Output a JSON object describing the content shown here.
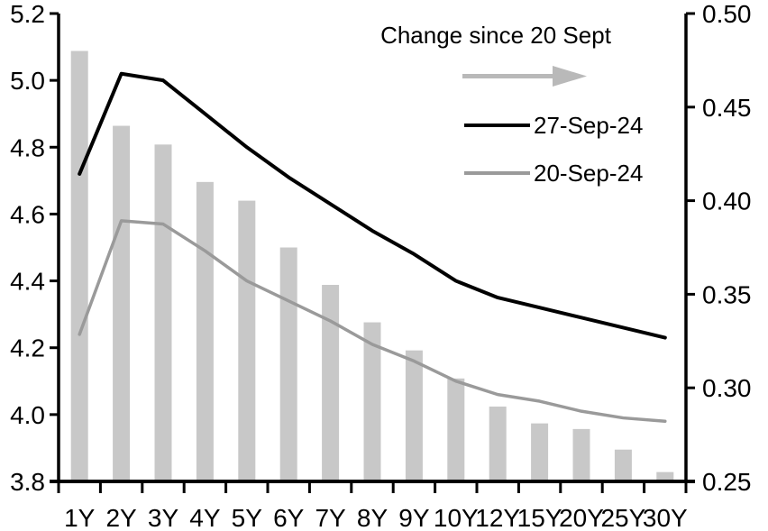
{
  "chart_data": {
    "type": "bar+line combo",
    "categories": [
      "1Y",
      "2Y",
      "3Y",
      "4Y",
      "5Y",
      "6Y",
      "7Y",
      "8Y",
      "9Y",
      "10Y",
      "12Y",
      "15Y",
      "20Y",
      "25Y",
      "30Y"
    ],
    "series": [
      {
        "name": "Change since 20 Sept",
        "type": "bar",
        "axis": "right",
        "color": "#c8c8c8",
        "values": [
          0.48,
          0.44,
          0.43,
          0.41,
          0.4,
          0.375,
          0.355,
          0.335,
          0.32,
          0.305,
          0.29,
          0.281,
          0.278,
          0.267,
          0.255
        ]
      },
      {
        "name": "27-Sep-24",
        "type": "line",
        "axis": "left",
        "color": "#000000",
        "stroke_width": 4,
        "values": [
          4.72,
          5.02,
          5.0,
          4.9,
          4.8,
          4.71,
          4.63,
          4.55,
          4.48,
          4.4,
          4.35,
          4.32,
          4.29,
          4.26,
          4.23
        ]
      },
      {
        "name": "20-Sep-24",
        "type": "line",
        "axis": "left",
        "color": "#9a9a9a",
        "stroke_width": 3.5,
        "values": [
          4.24,
          4.58,
          4.57,
          4.49,
          4.4,
          4.34,
          4.28,
          4.21,
          4.16,
          4.1,
          4.06,
          4.04,
          4.01,
          3.99,
          3.98
        ]
      }
    ],
    "left_axis": {
      "min": 3.8,
      "max": 5.2,
      "ticks": [
        "5.2",
        "5.0",
        "4.8",
        "4.6",
        "4.4",
        "4.2",
        "4.0",
        "3.8"
      ]
    },
    "right_axis": {
      "min": 0.25,
      "max": 0.5,
      "ticks": [
        "0.50",
        "0.45",
        "0.40",
        "0.35",
        "0.30",
        "0.25"
      ]
    },
    "grid": "off",
    "legend": {
      "position": "top-right-inside",
      "title": "Change since 20 Sept",
      "arrow_icon": "right-arrow",
      "arrow_color": "#b9b9b9",
      "entries": [
        "27-Sep-24",
        "20-Sep-24"
      ]
    }
  }
}
